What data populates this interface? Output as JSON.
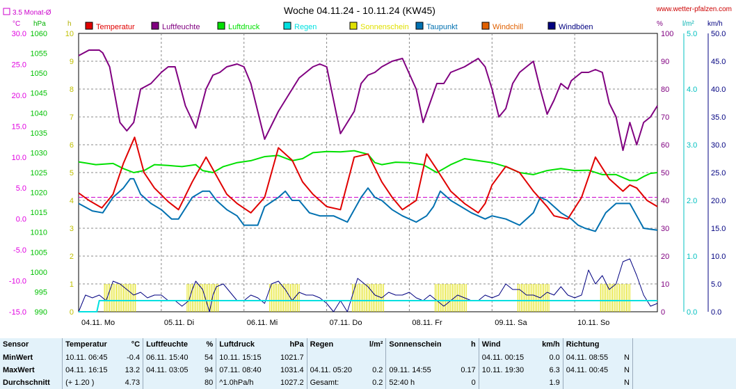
{
  "header": {
    "title": "Woche 04.11.24 - 10.11.24 (KW45)",
    "site": "www.wetter-pfalzen.com",
    "monthly_avg_label": "3.5 Monat-Ø"
  },
  "legend": [
    {
      "label": "Temperatur",
      "color": "#e00000"
    },
    {
      "label": "Luftfeuchte",
      "color": "#800080"
    },
    {
      "label": "Luftdruck",
      "color": "#00e000"
    },
    {
      "label": "Regen",
      "color": "#00e0e0"
    },
    {
      "label": "Sonnenschein",
      "color": "#e0e000"
    },
    {
      "label": "Taupunkt",
      "color": "#0070b0"
    },
    {
      "label": "Windchill",
      "color": "#e06000"
    },
    {
      "label": "Windböen",
      "color": "#000080"
    }
  ],
  "axes_units": {
    "temp": "°C",
    "pressure": "hPa",
    "sun": "h",
    "humidity": "%",
    "rain": "l/m²",
    "wind": "km/h"
  },
  "axes_ticks": {
    "temp": [
      "30.0",
      "25.0",
      "20.0",
      "15.0",
      "10.0",
      "5.0",
      "0.0",
      "-5.0",
      "-10.0",
      "-15.0"
    ],
    "pressure": [
      "1060",
      "1055",
      "1050",
      "1045",
      "1040",
      "1035",
      "1030",
      "1025",
      "1020",
      "1015",
      "1010",
      "1005",
      "1000",
      "995",
      "990"
    ],
    "sun": [
      "10",
      "9",
      "8",
      "7",
      "6",
      "5",
      "4",
      "3",
      "2",
      "1",
      "0"
    ],
    "humidity": [
      "100",
      "90",
      "80",
      "70",
      "60",
      "50",
      "40",
      "30",
      "20",
      "10",
      "0"
    ],
    "rain": [
      "5.0",
      "4.0",
      "3.0",
      "2.0",
      "1.0",
      "0.0"
    ],
    "wind": [
      "50.0",
      "45.0",
      "40.0",
      "35.0",
      "30.0",
      "25.0",
      "20.0",
      "15.0",
      "10.0",
      "5.0",
      "0.0"
    ],
    "days": [
      "04.11. Mo",
      "05.11. Di",
      "06.11. Mi",
      "07.11. Do",
      "08.11. Fr",
      "09.11. Sa",
      "10.11. So"
    ]
  },
  "chart_data": {
    "type": "line",
    "x_unit": "hours since 04.11. 00:00",
    "x_range": [
      0,
      168
    ],
    "monthly_avg_temp": 3.5,
    "series": [
      {
        "name": "Temperatur",
        "axis": "temp",
        "color": "#e00000",
        "x": [
          0,
          3,
          6.75,
          10,
          13,
          16.25,
          19,
          22,
          26,
          29,
          33,
          37,
          40,
          43,
          46,
          50,
          54,
          58,
          62,
          65,
          68,
          72,
          76,
          80,
          84,
          88,
          91,
          94,
          98,
          101,
          104,
          108,
          112,
          116,
          118,
          120,
          124,
          128,
          132,
          136,
          138,
          142,
          146,
          150,
          154,
          158,
          160,
          162,
          165,
          168
        ],
        "y": [
          4.2,
          3.0,
          1.8,
          4.0,
          9.0,
          13.2,
          7.5,
          5.0,
          2.8,
          1.5,
          6.0,
          10.0,
          7.0,
          4.0,
          2.5,
          1.0,
          3.5,
          11.5,
          9.5,
          6.0,
          4.0,
          2.0,
          1.5,
          10.0,
          10.5,
          6.0,
          3.5,
          1.5,
          3.0,
          10.5,
          8.0,
          4.5,
          2.5,
          1.0,
          2.5,
          5.5,
          8.5,
          7.5,
          4.5,
          2.0,
          0.5,
          0.0,
          3.5,
          10.0,
          6.5,
          4.5,
          5.5,
          5.0,
          3.0,
          2.0
        ]
      },
      {
        "name": "Luftfeuchte",
        "axis": "humidity",
        "color": "#800080",
        "x": [
          0,
          3,
          6,
          7,
          9,
          12,
          14,
          16,
          18,
          21,
          24,
          26,
          28,
          31,
          34,
          37,
          39,
          41,
          43,
          46,
          48,
          50,
          54,
          58,
          62,
          64,
          66,
          68,
          70,
          72,
          76,
          80,
          82,
          84,
          86,
          88,
          91,
          94,
          98,
          100,
          102,
          104,
          106,
          108,
          112,
          116,
          118,
          120,
          122,
          124,
          126,
          128,
          130,
          132,
          134,
          136,
          138,
          140,
          142,
          143,
          144,
          146,
          148,
          150,
          152,
          154,
          156,
          158,
          160,
          162,
          164,
          166,
          168
        ],
        "y": [
          92,
          94,
          94,
          93,
          88,
          68,
          65,
          68,
          80,
          82,
          86,
          88,
          88,
          74,
          66,
          80,
          85,
          86,
          88,
          89,
          88,
          82,
          62,
          72,
          80,
          84,
          86,
          88,
          89,
          88,
          64,
          72,
          82,
          85,
          86,
          88,
          90,
          91,
          80,
          68,
          75,
          82,
          82,
          86,
          88,
          91,
          88,
          80,
          70,
          73,
          82,
          86,
          88,
          90,
          80,
          71,
          76,
          82,
          80,
          83,
          84,
          86,
          86,
          87,
          86,
          75,
          70,
          58,
          68,
          60,
          68,
          70,
          74
        ]
      },
      {
        "name": "Luftdruck",
        "axis": "pressure",
        "color": "#00e000",
        "x": [
          0,
          5,
          10,
          13,
          16,
          19,
          22,
          26,
          30,
          34,
          36,
          39,
          42,
          46,
          50,
          54,
          58,
          62,
          65,
          68,
          72,
          76,
          80,
          84,
          86,
          88,
          92,
          96,
          100,
          104,
          108,
          112,
          116,
          120,
          124,
          128,
          132,
          136,
          140,
          144,
          148,
          152,
          156,
          160,
          162,
          164,
          166,
          168
        ],
        "y": [
          1027.7,
          1027,
          1027.3,
          1026,
          1025,
          1025.5,
          1027,
          1026.8,
          1026.5,
          1027,
          1025.5,
          1025,
          1026.5,
          1027.5,
          1028,
          1029,
          1029.3,
          1028,
          1028.5,
          1030,
          1030.3,
          1030.2,
          1030.5,
          1029.6,
          1027.5,
          1027,
          1027.6,
          1027.5,
          1027,
          1025,
          1027,
          1028.5,
          1028,
          1027.5,
          1026.5,
          1025,
          1024.5,
          1025.5,
          1026,
          1025.5,
          1025.6,
          1024.5,
          1024.5,
          1023,
          1023,
          1024,
          1024.8,
          1025
        ]
      },
      {
        "name": "Taupunkt",
        "axis": "temp",
        "color": "#0070b0",
        "x": [
          0,
          4,
          7,
          10,
          13,
          15,
          16,
          18,
          21,
          24,
          27,
          29,
          33,
          36,
          38,
          40,
          43,
          46,
          48,
          52,
          54,
          58,
          60,
          62,
          64,
          67,
          70,
          74,
          78,
          82,
          84,
          86,
          88,
          91,
          94,
          98,
          101,
          103,
          105,
          108,
          111,
          114,
          118,
          120,
          124,
          128,
          130,
          132,
          134,
          136,
          140,
          143,
          145,
          147,
          150,
          153,
          156,
          158,
          160,
          162,
          164,
          168
        ],
        "y": [
          2.5,
          1.3,
          1.0,
          3.5,
          5.0,
          6.5,
          6.5,
          4.0,
          2.5,
          1.5,
          0.0,
          0.0,
          3.5,
          4.5,
          4.5,
          3.0,
          1.5,
          0.5,
          -1.0,
          -1.0,
          2.0,
          3.5,
          4.5,
          3.0,
          3.0,
          1.0,
          0.5,
          0.5,
          -0.5,
          3.5,
          5.0,
          3.5,
          3.0,
          1.5,
          0.5,
          -0.5,
          0.5,
          2.0,
          4.5,
          3.0,
          2.0,
          1.0,
          0.0,
          0.5,
          0.0,
          -1.0,
          0.0,
          1.0,
          3.5,
          3.0,
          1.0,
          0.0,
          -1.0,
          -1.5,
          -2.0,
          1.0,
          2.5,
          2.5,
          2.5,
          0.5,
          -1.5,
          -1.8
        ]
      },
      {
        "name": "Regen",
        "axis": "rain",
        "color": "#00e0e0",
        "x": [
          0,
          5.3,
          6,
          168
        ],
        "y": [
          0,
          0,
          0.2,
          0.2
        ]
      },
      {
        "name": "Windböen",
        "axis": "wind",
        "color": "#000080",
        "x": [
          0,
          2,
          4,
          6,
          8,
          10,
          12,
          14,
          16,
          18,
          20,
          22,
          24,
          26,
          28,
          30,
          32,
          33,
          34,
          36,
          38,
          39,
          40,
          42,
          44,
          46,
          48,
          50,
          52,
          54,
          56,
          58,
          60,
          62,
          64,
          66,
          68,
          70,
          72,
          74,
          76,
          78,
          80,
          81,
          82,
          84,
          86,
          88,
          90,
          92,
          94,
          96,
          98,
          100,
          102,
          104,
          106,
          108,
          110,
          112,
          114,
          116,
          118,
          120,
          122,
          124,
          126,
          128,
          130,
          132,
          134,
          136,
          138,
          140,
          142,
          144,
          146,
          148,
          150,
          152,
          154,
          156,
          158,
          160,
          162,
          164,
          166,
          168
        ],
        "y": [
          0,
          3,
          2.5,
          3,
          2,
          5.5,
          5,
          4,
          3,
          3.5,
          2.5,
          3,
          3,
          2,
          2,
          1,
          2,
          4,
          5.5,
          4,
          0,
          3,
          4.5,
          5,
          3.5,
          2,
          2,
          3,
          2.5,
          1.5,
          5,
          5.5,
          4,
          2,
          3.5,
          3,
          3,
          2.5,
          1.5,
          0,
          2,
          0,
          4,
          6,
          5.5,
          4.5,
          3,
          2.5,
          3.5,
          3,
          3,
          3.5,
          2.5,
          2,
          3,
          2,
          1,
          2,
          3,
          2.5,
          2,
          2,
          3,
          2.5,
          3,
          5,
          4,
          4,
          3,
          3,
          2.5,
          3.5,
          3,
          4.5,
          3,
          2.5,
          3,
          7.5,
          5,
          6.5,
          4,
          5,
          9,
          9.5,
          6.5,
          3,
          1,
          1.5
        ]
      }
    ],
    "sunshine": {
      "name": "Sonnenschein",
      "axis": "sun",
      "color": "#e0e000",
      "segments": [
        [
          7.5,
          16.5,
          1.0
        ],
        [
          31.5,
          40.5,
          1.0
        ],
        [
          55.5,
          64,
          1.0
        ],
        [
          79.5,
          88.5,
          1.0
        ],
        [
          103.5,
          112.5,
          1.0
        ],
        [
          127.5,
          136.5,
          1.0
        ],
        [
          151.5,
          160,
          1.0
        ]
      ]
    }
  },
  "summary": {
    "headers": {
      "sensor": "Sensor",
      "temp": "Temperatur",
      "temp_unit": "°C",
      "hum": "Luftfeuchte",
      "hum_unit": "%",
      "press": "Luftdruck",
      "press_unit": "hPa",
      "rain": "Regen",
      "rain_unit": "l/m²",
      "sun": "Sonnenschein",
      "sun_unit": "h",
      "wind": "Wind",
      "wind_unit": "km/h",
      "dir": "Richtung"
    },
    "rows": [
      {
        "label": "MinWert",
        "temp_t": "10.11. 06:45",
        "temp_v": "-0.4",
        "hum_t": "06.11. 15:40",
        "hum_v": "54",
        "press_t": "10.11. 15:15",
        "press_v": "1021.7",
        "rain_t": "",
        "rain_v": "",
        "sun_t": "",
        "sun_v": "",
        "wind_t": "04.11. 00:15",
        "wind_v": "0.0",
        "dir_t": "04.11. 08:55",
        "dir_v": "N"
      },
      {
        "label": "MaxWert",
        "temp_t": "04.11. 16:15",
        "temp_v": "13.2",
        "hum_t": "04.11. 03:05",
        "hum_v": "94",
        "press_t": "07.11. 08:40",
        "press_v": "1031.4",
        "rain_t": "04.11. 05:20",
        "rain_v": "0.2",
        "sun_t": "09.11. 14:55",
        "sun_v": "0.17",
        "wind_t": "10.11. 19:30",
        "wind_v": "6.3",
        "dir_t": "04.11. 00:45",
        "dir_v": "N"
      },
      {
        "label": "Durchschnitt",
        "temp_t": "(+ 1.20 )",
        "temp_v": "4.73",
        "hum_t": "",
        "hum_v": "80",
        "press_t": "^1.0hPa/h",
        "press_v": "1027.2",
        "rain_t": "Gesamt:",
        "rain_v": "0.2",
        "sun_t": "52:40 h",
        "sun_v": "0",
        "wind_t": "",
        "wind_v": "1.9",
        "dir_t": "",
        "dir_v": "N"
      }
    ]
  }
}
